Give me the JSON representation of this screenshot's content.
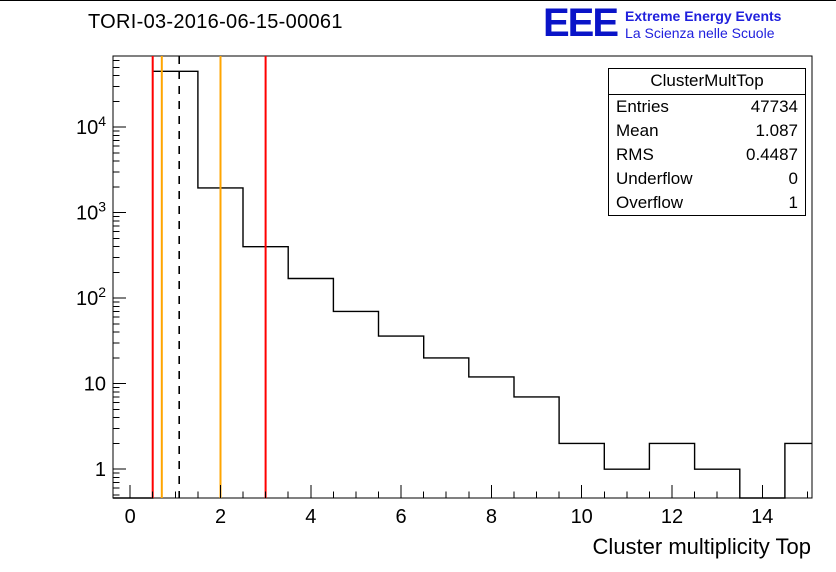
{
  "header": {
    "title": "TORI-03-2016-06-15-00061"
  },
  "logo": {
    "acronym": "EEE",
    "acronym_color": "#0a14c8",
    "line1": "Extreme Energy Events",
    "line2": "La Scienza nelle Scuole",
    "text_color": "#2020dd"
  },
  "stats": {
    "title": "ClusterMultTop",
    "rows": [
      {
        "label": "Entries",
        "value": "47734"
      },
      {
        "label": "Mean",
        "value": "1.087"
      },
      {
        "label": "RMS",
        "value": "0.4487"
      },
      {
        "label": "Underflow",
        "value": "0"
      },
      {
        "label": "Overflow",
        "value": "1"
      }
    ]
  },
  "chart_data": {
    "type": "bar",
    "title": "TORI-03-2016-06-15-00061",
    "xlabel": "Cluster multiplicity Top",
    "ylabel": "",
    "yscale": "log",
    "grid": false,
    "legend": false,
    "bin_centers": [
      0,
      1,
      2,
      3,
      4,
      5,
      6,
      7,
      8,
      9,
      10,
      11,
      12,
      13,
      14,
      15
    ],
    "values": [
      0,
      45060,
      1950,
      400,
      170,
      70,
      36,
      20,
      12,
      7,
      2,
      1,
      2,
      1,
      0,
      2
    ],
    "bin_width": 1,
    "xlim": [
      -0.38,
      15.1
    ],
    "ylim": [
      0.46,
      68000
    ],
    "xticks": [
      0,
      2,
      4,
      6,
      8,
      10,
      12,
      14
    ],
    "ytick_labels": [
      {
        "value": 1,
        "base": "1",
        "exp": ""
      },
      {
        "value": 10,
        "base": "10",
        "exp": ""
      },
      {
        "value": 100,
        "base": "10",
        "exp": "2"
      },
      {
        "value": 1000,
        "base": "10",
        "exp": "3"
      },
      {
        "value": 10000,
        "base": "10",
        "exp": "4"
      }
    ],
    "hist_color": "#000000",
    "ref_lines": [
      {
        "x": 0.5,
        "color": "#ff0000",
        "style": "solid",
        "name": "red-lower-limit"
      },
      {
        "x": 0.7,
        "color": "#ffa500",
        "style": "solid",
        "name": "orange-lower-warning"
      },
      {
        "x": 1.087,
        "color": "#000000",
        "style": "dashed",
        "name": "mean-marker"
      },
      {
        "x": 2.0,
        "color": "#ffa500",
        "style": "solid",
        "name": "orange-upper-warning"
      },
      {
        "x": 3.0,
        "color": "#ff0000",
        "style": "solid",
        "name": "red-upper-limit"
      }
    ]
  }
}
